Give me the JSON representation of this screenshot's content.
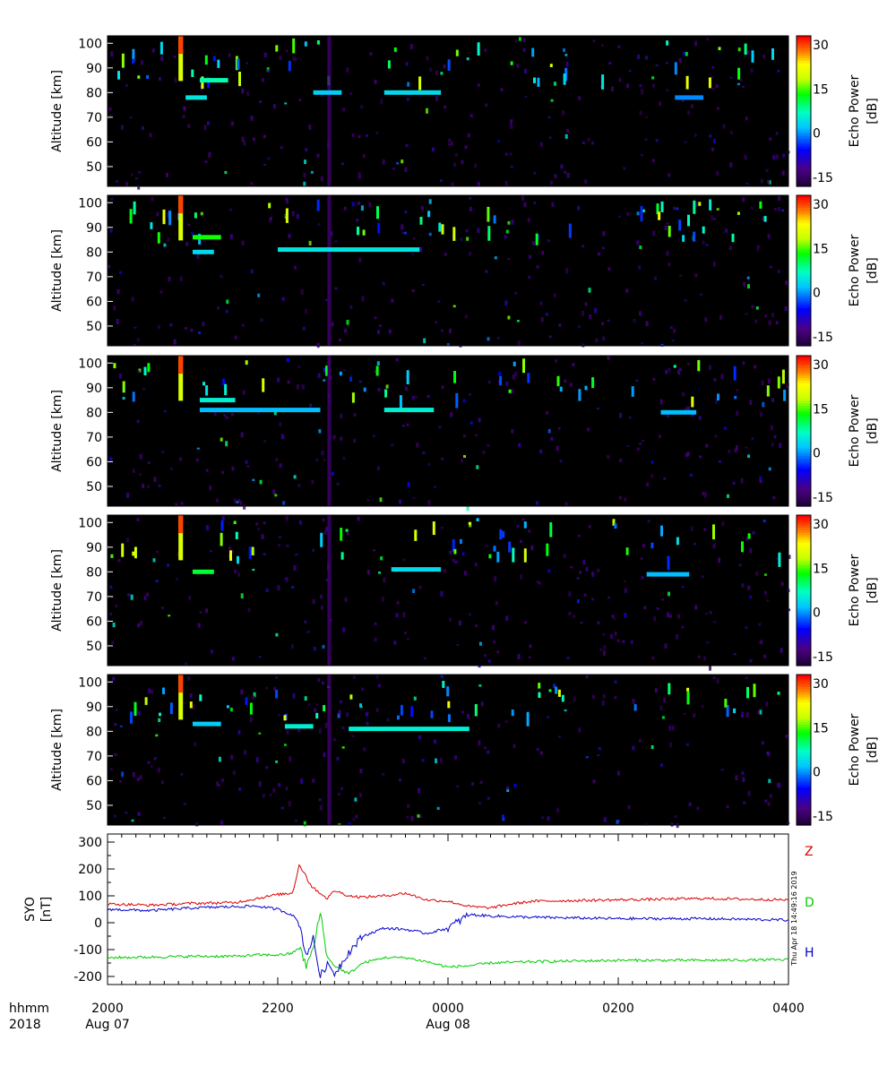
{
  "chart_data": [
    {
      "type": "heatmap",
      "panel": 1,
      "ylabel": "Altitude [km]",
      "yticks": [
        50,
        60,
        70,
        80,
        90,
        100
      ],
      "ylim": [
        42,
        103
      ],
      "colorbar": {
        "label_line1": "Echo Power",
        "label_line2": "[dB]",
        "ticks": [
          30,
          15,
          0,
          -15
        ],
        "range": [
          -18,
          33
        ]
      },
      "echo_layers": [
        {
          "t_start": "2018-08-07 21:05",
          "t_end": "2018-08-07 21:25",
          "altitude_km": 85,
          "power_db": 8
        },
        {
          "t_start": "2018-08-07 20:55",
          "t_end": "2018-08-07 21:10",
          "altitude_km": 78,
          "power_db": 5
        },
        {
          "t_start": "2018-08-07 22:25",
          "t_end": "2018-08-07 22:45",
          "altitude_km": 80,
          "power_db": 3
        },
        {
          "t_start": "2018-08-07 23:15",
          "t_end": "2018-08-07 23:55",
          "altitude_km": 80,
          "power_db": 4
        },
        {
          "t_start": "2018-08-08 02:40",
          "t_end": "2018-08-08 03:00",
          "altitude_km": 78,
          "power_db": 0
        }
      ]
    },
    {
      "type": "heatmap",
      "panel": 2,
      "ylabel": "Altitude [km]",
      "yticks": [
        50,
        60,
        70,
        80,
        90,
        100
      ],
      "ylim": [
        42,
        103
      ],
      "colorbar": {
        "label_line1": "Echo Power",
        "label_line2": "[dB]",
        "ticks": [
          30,
          15,
          0,
          -15
        ],
        "range": [
          -18,
          33
        ]
      },
      "echo_layers": [
        {
          "t_start": "2018-08-07 21:00",
          "t_end": "2018-08-07 21:20",
          "altitude_km": 86,
          "power_db": 14
        },
        {
          "t_start": "2018-08-07 21:00",
          "t_end": "2018-08-07 21:15",
          "altitude_km": 80,
          "power_db": 4
        },
        {
          "t_start": "2018-08-07 22:00",
          "t_end": "2018-08-07 23:40",
          "altitude_km": 81,
          "power_db": 5
        }
      ]
    },
    {
      "type": "heatmap",
      "panel": 3,
      "ylabel": "Altitude [km]",
      "yticks": [
        50,
        60,
        70,
        80,
        90,
        100
      ],
      "ylim": [
        42,
        103
      ],
      "colorbar": {
        "label_line1": "Echo Power",
        "label_line2": "[dB]",
        "ticks": [
          30,
          15,
          0,
          -15
        ],
        "range": [
          -18,
          33
        ]
      },
      "echo_layers": [
        {
          "t_start": "2018-08-07 21:05",
          "t_end": "2018-08-07 21:30",
          "altitude_km": 85,
          "power_db": 6
        },
        {
          "t_start": "2018-08-07 21:05",
          "t_end": "2018-08-07 22:30",
          "altitude_km": 81,
          "power_db": 2
        },
        {
          "t_start": "2018-08-07 23:15",
          "t_end": "2018-08-07 23:50",
          "altitude_km": 81,
          "power_db": 6
        },
        {
          "t_start": "2018-08-08 02:30",
          "t_end": "2018-08-08 02:55",
          "altitude_km": 80,
          "power_db": 2
        }
      ]
    },
    {
      "type": "heatmap",
      "panel": 4,
      "ylabel": "Altitude [km]",
      "yticks": [
        50,
        60,
        70,
        80,
        90,
        100
      ],
      "ylim": [
        42,
        103
      ],
      "colorbar": {
        "label_line1": "Echo Power",
        "label_line2": "[dB]",
        "ticks": [
          30,
          15,
          0,
          -15
        ],
        "range": [
          -18,
          33
        ]
      },
      "echo_layers": [
        {
          "t_start": "2018-08-07 21:00",
          "t_end": "2018-08-07 21:15",
          "altitude_km": 80,
          "power_db": 12
        },
        {
          "t_start": "2018-08-07 23:20",
          "t_end": "2018-08-07 23:55",
          "altitude_km": 81,
          "power_db": 4
        },
        {
          "t_start": "2018-08-08 02:20",
          "t_end": "2018-08-08 02:50",
          "altitude_km": 79,
          "power_db": 2
        }
      ]
    },
    {
      "type": "heatmap",
      "panel": 5,
      "ylabel": "Altitude [km]",
      "yticks": [
        50,
        60,
        70,
        80,
        90,
        100
      ],
      "ylim": [
        42,
        103
      ],
      "colorbar": {
        "label_line1": "Echo Power",
        "label_line2": "[dB]",
        "ticks": [
          30,
          15,
          0,
          -15
        ],
        "range": [
          -18,
          33
        ]
      },
      "echo_layers": [
        {
          "t_start": "2018-08-07 21:00",
          "t_end": "2018-08-07 21:20",
          "altitude_km": 83,
          "power_db": 3
        },
        {
          "t_start": "2018-08-07 22:05",
          "t_end": "2018-08-07 22:25",
          "altitude_km": 82,
          "power_db": 6
        },
        {
          "t_start": "2018-08-07 22:50",
          "t_end": "2018-08-08 00:15",
          "altitude_km": 81,
          "power_db": 6
        }
      ]
    },
    {
      "type": "line",
      "panel": 6,
      "ylabel_line1": "SYO",
      "ylabel_line2": "[nT]",
      "yticks": [
        300,
        200,
        100,
        0,
        -100,
        -200
      ],
      "ylim": [
        -230,
        330
      ],
      "xlim": [
        "2018-08-07 20:00",
        "2018-08-08 04:00"
      ],
      "series": [
        {
          "name": "Z",
          "color": "#dd0000",
          "x": [
            "20:00",
            "20:30",
            "21:00",
            "21:30",
            "21:45",
            "22:00",
            "22:10",
            "22:15",
            "22:20",
            "22:25",
            "22:30",
            "22:35",
            "22:40",
            "22:50",
            "23:00",
            "23:15",
            "23:30",
            "23:45",
            "00:00",
            "00:15",
            "00:30",
            "00:45",
            "01:00",
            "02:00",
            "03:00",
            "04:00"
          ],
          "values": [
            70,
            65,
            72,
            75,
            90,
            105,
            110,
            215,
            175,
            130,
            110,
            90,
            120,
            100,
            95,
            100,
            110,
            85,
            80,
            60,
            55,
            70,
            80,
            85,
            90,
            85
          ]
        },
        {
          "name": "D",
          "color": "#00cc00",
          "x": [
            "20:00",
            "20:30",
            "21:00",
            "21:30",
            "21:45",
            "22:00",
            "22:10",
            "22:15",
            "22:20",
            "22:25",
            "22:30",
            "22:35",
            "22:40",
            "22:50",
            "23:00",
            "23:15",
            "23:30",
            "23:45",
            "00:00",
            "00:15",
            "00:30",
            "01:00",
            "02:00",
            "03:00",
            "04:00"
          ],
          "values": [
            -130,
            -128,
            -125,
            -125,
            -120,
            -120,
            -115,
            -90,
            -160,
            -100,
            40,
            -130,
            -160,
            -190,
            -150,
            -130,
            -130,
            -145,
            -165,
            -160,
            -150,
            -145,
            -140,
            -140,
            -138
          ]
        },
        {
          "name": "H",
          "color": "#0000cc",
          "x": [
            "20:00",
            "20:30",
            "21:00",
            "21:30",
            "21:45",
            "22:00",
            "22:10",
            "22:15",
            "22:20",
            "22:25",
            "22:30",
            "22:35",
            "22:40",
            "22:50",
            "23:00",
            "23:15",
            "23:30",
            "23:45",
            "00:00",
            "00:15",
            "00:30",
            "01:00",
            "02:00",
            "03:00",
            "04:00"
          ],
          "values": [
            50,
            45,
            55,
            60,
            62,
            50,
            30,
            0,
            -120,
            -60,
            -200,
            -150,
            -190,
            -110,
            -50,
            -20,
            -25,
            -40,
            -20,
            30,
            25,
            20,
            15,
            15,
            10
          ]
        }
      ],
      "legend_order": [
        "Z",
        "D",
        "H"
      ]
    }
  ],
  "x_axis": {
    "row1_label": "hhmm",
    "row2_label": "2018",
    "ticks": [
      "2000",
      "2200",
      "0000",
      "0200",
      "0400"
    ],
    "dates": [
      {
        "at": "2000",
        "text": "Aug 07"
      },
      {
        "at": "0000",
        "text": "Aug 08"
      }
    ]
  },
  "timestamp": "Thu Apr 18 14:49:16 2019",
  "colors": {
    "low": "#1a0033",
    "mid": "#00c8ff",
    "high": "#ff0000",
    "background": "#000000"
  }
}
